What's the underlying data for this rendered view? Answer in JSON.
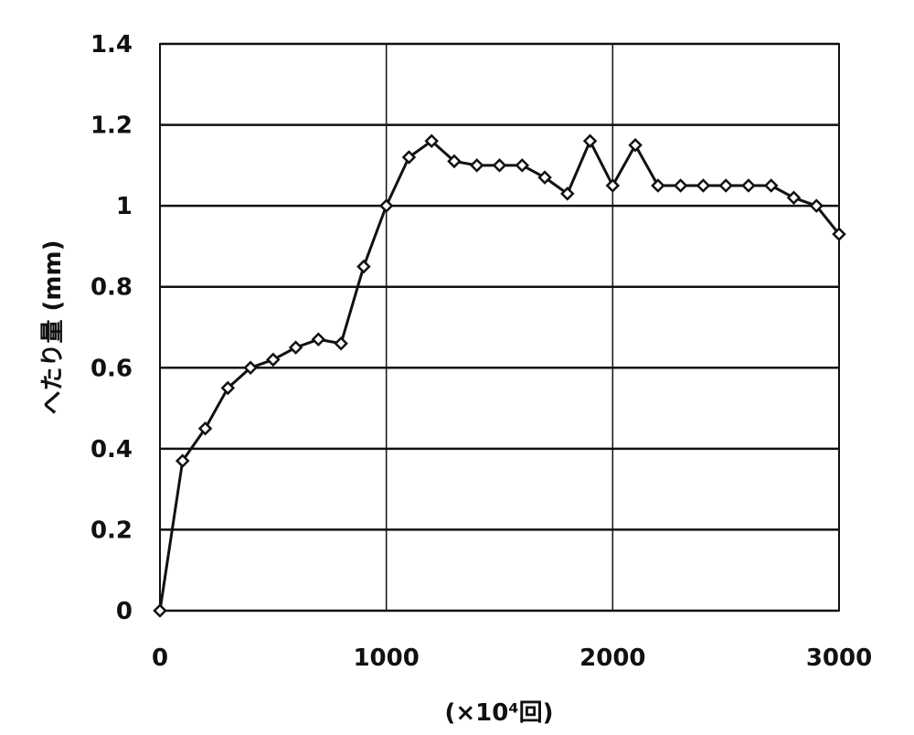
{
  "chart_data": {
    "type": "line",
    "title": "",
    "xlabel": "(×10⁴回)",
    "ylabel": "へたり量 (mm)",
    "xlim": [
      0,
      3000
    ],
    "ylim": [
      0,
      1.4
    ],
    "x_ticks": [
      "0",
      "1000",
      "2000",
      "3000"
    ],
    "y_ticks": [
      "0",
      "0.2",
      "0.4",
      "0.6",
      "0.8",
      "1",
      "1.2",
      "1.4"
    ],
    "x_tick_values": [
      0,
      1000,
      2000,
      3000
    ],
    "y_tick_values": [
      0,
      0.2,
      0.4,
      0.6,
      0.8,
      1,
      1.2,
      1.4
    ],
    "grid": true,
    "legend": "none",
    "marker": "diamond",
    "series": [
      {
        "x": [
          0,
          100,
          200,
          300,
          400,
          500,
          600,
          700,
          800,
          900,
          1000,
          1100,
          1200,
          1300,
          1400,
          1500,
          1600,
          1700,
          1800,
          1900,
          2000,
          2100,
          2200,
          2300,
          2400,
          2500,
          2600,
          2700,
          2800,
          2900,
          3000
        ],
        "values": [
          0,
          0.37,
          0.45,
          0.55,
          0.6,
          0.62,
          0.65,
          0.67,
          0.66,
          0.85,
          1.0,
          1.12,
          1.16,
          1.11,
          1.1,
          1.1,
          1.1,
          1.07,
          1.03,
          1.16,
          1.05,
          1.15,
          1.05,
          1.05,
          1.05,
          1.05,
          1.05,
          1.05,
          1.02,
          1.0,
          0.93
        ]
      }
    ]
  }
}
